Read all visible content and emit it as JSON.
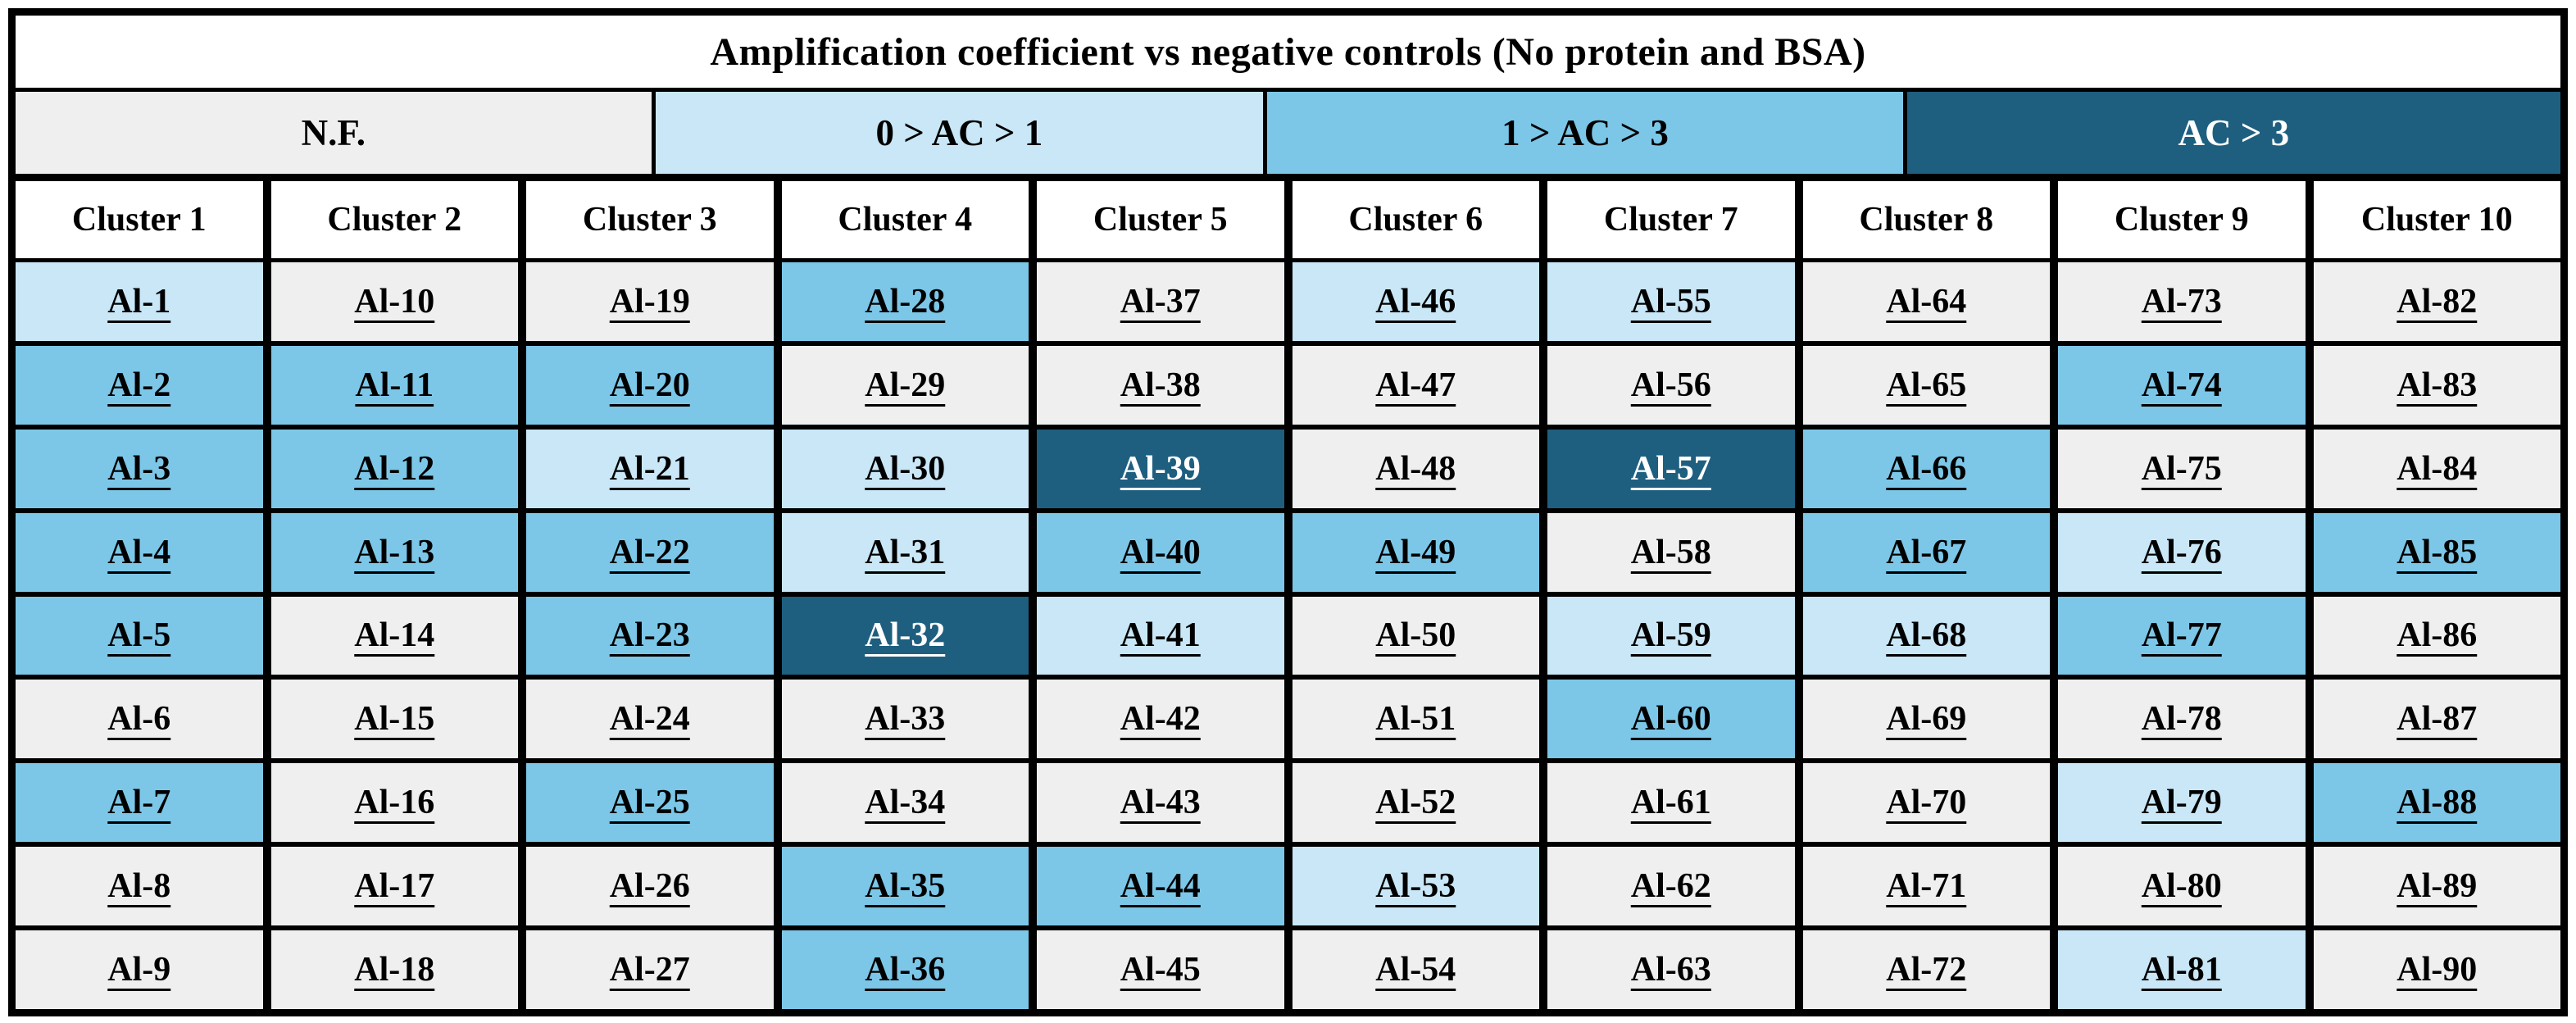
{
  "title": "Amplification coefficient vs negative controls (No protein and BSA)",
  "colors": {
    "nf": "#efefef",
    "low": "#c9e7f6",
    "mid": "#7cc7e8",
    "high": "#1e5f80",
    "text_dark": "#000000",
    "text_light": "#ffffff",
    "grid": "#000000"
  },
  "legend": {
    "items": [
      {
        "label": "N.F.",
        "category": "nf"
      },
      {
        "label": "0 > AC > 1",
        "category": "low"
      },
      {
        "label": "1 > AC > 3",
        "category": "mid"
      },
      {
        "label": "AC > 3",
        "category": "high"
      }
    ]
  },
  "clusters": [
    {
      "name": "Cluster 1",
      "cells": [
        {
          "label": "Al-1",
          "category": "low"
        },
        {
          "label": "Al-2",
          "category": "mid"
        },
        {
          "label": "Al-3",
          "category": "mid"
        },
        {
          "label": "Al-4",
          "category": "mid"
        },
        {
          "label": "Al-5",
          "category": "mid"
        },
        {
          "label": "Al-6",
          "category": "nf"
        },
        {
          "label": "Al-7",
          "category": "mid"
        },
        {
          "label": "Al-8",
          "category": "nf"
        },
        {
          "label": "Al-9",
          "category": "nf"
        }
      ]
    },
    {
      "name": "Cluster 2",
      "cells": [
        {
          "label": "Al-10",
          "category": "nf"
        },
        {
          "label": "Al-11",
          "category": "mid"
        },
        {
          "label": "Al-12",
          "category": "mid"
        },
        {
          "label": "Al-13",
          "category": "mid"
        },
        {
          "label": "Al-14",
          "category": "nf"
        },
        {
          "label": "Al-15",
          "category": "nf"
        },
        {
          "label": "Al-16",
          "category": "nf"
        },
        {
          "label": "Al-17",
          "category": "nf"
        },
        {
          "label": "Al-18",
          "category": "nf"
        }
      ]
    },
    {
      "name": "Cluster 3",
      "cells": [
        {
          "label": "Al-19",
          "category": "nf"
        },
        {
          "label": "Al-20",
          "category": "mid"
        },
        {
          "label": "Al-21",
          "category": "low"
        },
        {
          "label": "Al-22",
          "category": "mid"
        },
        {
          "label": "Al-23",
          "category": "mid"
        },
        {
          "label": "Al-24",
          "category": "nf"
        },
        {
          "label": "Al-25",
          "category": "mid"
        },
        {
          "label": "Al-26",
          "category": "nf"
        },
        {
          "label": "Al-27",
          "category": "nf"
        }
      ]
    },
    {
      "name": "Cluster 4",
      "cells": [
        {
          "label": "Al-28",
          "category": "mid"
        },
        {
          "label": "Al-29",
          "category": "nf"
        },
        {
          "label": "Al-30",
          "category": "low"
        },
        {
          "label": "Al-31",
          "category": "low"
        },
        {
          "label": "Al-32",
          "category": "high"
        },
        {
          "label": "Al-33",
          "category": "nf"
        },
        {
          "label": "Al-34",
          "category": "nf"
        },
        {
          "label": "Al-35",
          "category": "mid"
        },
        {
          "label": "Al-36",
          "category": "mid"
        }
      ]
    },
    {
      "name": "Cluster 5",
      "cells": [
        {
          "label": "Al-37",
          "category": "nf"
        },
        {
          "label": "Al-38",
          "category": "nf"
        },
        {
          "label": "Al-39",
          "category": "high"
        },
        {
          "label": "Al-40",
          "category": "mid"
        },
        {
          "label": "Al-41",
          "category": "low"
        },
        {
          "label": "Al-42",
          "category": "nf"
        },
        {
          "label": "Al-43",
          "category": "nf"
        },
        {
          "label": "Al-44",
          "category": "mid"
        },
        {
          "label": "Al-45",
          "category": "nf"
        }
      ]
    },
    {
      "name": "Cluster 6",
      "cells": [
        {
          "label": "Al-46",
          "category": "low"
        },
        {
          "label": "Al-47",
          "category": "nf"
        },
        {
          "label": "Al-48",
          "category": "nf"
        },
        {
          "label": "Al-49",
          "category": "mid"
        },
        {
          "label": "Al-50",
          "category": "nf"
        },
        {
          "label": "Al-51",
          "category": "nf"
        },
        {
          "label": "Al-52",
          "category": "nf"
        },
        {
          "label": "Al-53",
          "category": "low"
        },
        {
          "label": "Al-54",
          "category": "nf"
        }
      ]
    },
    {
      "name": "Cluster 7",
      "cells": [
        {
          "label": "Al-55",
          "category": "low"
        },
        {
          "label": "Al-56",
          "category": "nf"
        },
        {
          "label": "Al-57",
          "category": "high"
        },
        {
          "label": "Al-58",
          "category": "nf"
        },
        {
          "label": "Al-59",
          "category": "low"
        },
        {
          "label": "Al-60",
          "category": "mid"
        },
        {
          "label": "Al-61",
          "category": "nf"
        },
        {
          "label": "Al-62",
          "category": "nf"
        },
        {
          "label": "Al-63",
          "category": "nf"
        }
      ]
    },
    {
      "name": "Cluster 8",
      "cells": [
        {
          "label": "Al-64",
          "category": "nf"
        },
        {
          "label": "Al-65",
          "category": "nf"
        },
        {
          "label": "Al-66",
          "category": "mid"
        },
        {
          "label": "Al-67",
          "category": "mid"
        },
        {
          "label": "Al-68",
          "category": "low"
        },
        {
          "label": "Al-69",
          "category": "nf"
        },
        {
          "label": "Al-70",
          "category": "nf"
        },
        {
          "label": "Al-71",
          "category": "nf"
        },
        {
          "label": "Al-72",
          "category": "nf"
        }
      ]
    },
    {
      "name": "Cluster 9",
      "cells": [
        {
          "label": "Al-73",
          "category": "nf"
        },
        {
          "label": "Al-74",
          "category": "mid"
        },
        {
          "label": "Al-75",
          "category": "nf"
        },
        {
          "label": "Al-76",
          "category": "low"
        },
        {
          "label": "Al-77",
          "category": "mid"
        },
        {
          "label": "Al-78",
          "category": "nf"
        },
        {
          "label": "Al-79",
          "category": "low"
        },
        {
          "label": "Al-80",
          "category": "nf"
        },
        {
          "label": "Al-81",
          "category": "low"
        }
      ]
    },
    {
      "name": "Cluster 10",
      "cells": [
        {
          "label": "Al-82",
          "category": "nf"
        },
        {
          "label": "Al-83",
          "category": "nf"
        },
        {
          "label": "Al-84",
          "category": "nf"
        },
        {
          "label": "Al-85",
          "category": "mid"
        },
        {
          "label": "Al-86",
          "category": "nf"
        },
        {
          "label": "Al-87",
          "category": "nf"
        },
        {
          "label": "Al-88",
          "category": "mid"
        },
        {
          "label": "Al-89",
          "category": "nf"
        },
        {
          "label": "Al-90",
          "category": "nf"
        }
      ]
    }
  ]
}
